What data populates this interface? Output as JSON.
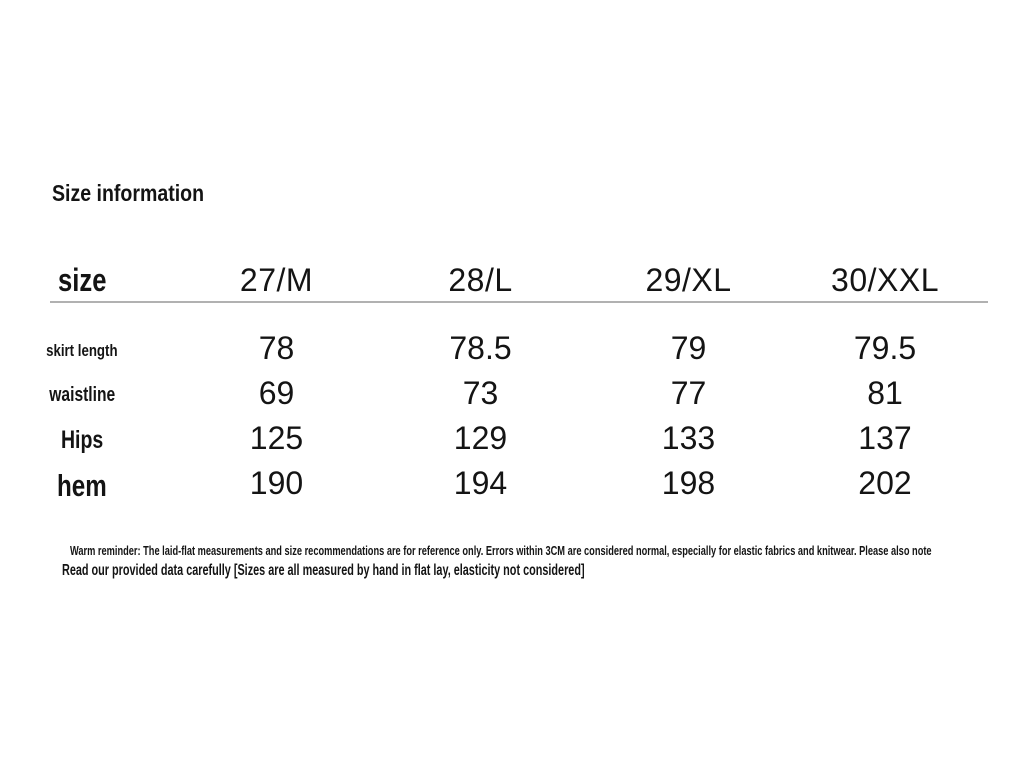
{
  "page": {
    "title": "Size information"
  },
  "colors": {
    "background": "#ffffff",
    "text": "#141414",
    "divider": "#b1b1b1"
  },
  "size_table": {
    "header": {
      "size_label": "size",
      "columns": [
        "27/M",
        "28/L",
        "29/XL",
        "30/XXL"
      ]
    },
    "rows": [
      {
        "label": "skirt length",
        "values": [
          "78",
          "78.5",
          "79",
          "79.5"
        ]
      },
      {
        "label": "waistline",
        "values": [
          "69",
          "73",
          "77",
          "81"
        ]
      },
      {
        "label": "Hips",
        "values": [
          "125",
          "129",
          "133",
          "137"
        ]
      },
      {
        "label": "hem",
        "values": [
          "190",
          "194",
          "198",
          "202"
        ]
      }
    ]
  },
  "notes": {
    "line1": "Warm reminder: The laid-flat measurements and size recommendations are for reference only. Errors within 3CM are considered normal, especially for elastic fabrics and knitwear. Please also note",
    "line2": "Read our provided data carefully [Sizes are all measured by hand in flat lay, elasticity not considered]"
  }
}
